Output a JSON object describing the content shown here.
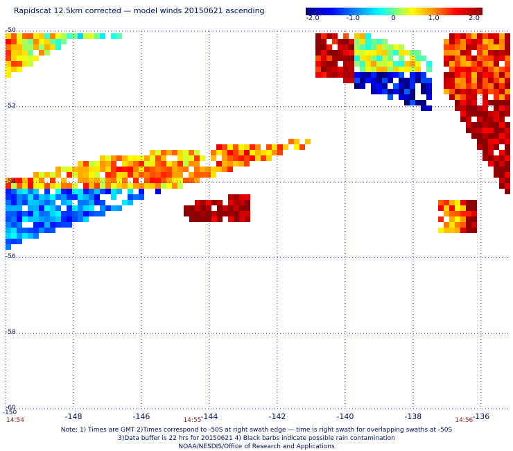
{
  "title": "Rapidscat 12.5km corrected — model winds 20150621 ascending",
  "colorbar": {
    "ticks": [
      "-2.0",
      "-1.0",
      "0",
      "1.0",
      "2.0"
    ],
    "tick_values": [
      -2,
      -1,
      0,
      1,
      2
    ],
    "min": -2,
    "max": 2,
    "colors": [
      "#000078",
      "#0000ff",
      "#0096ff",
      "#00ffff",
      "#ffff00",
      "#ff9600",
      "#ff0000",
      "#8b0000"
    ]
  },
  "latitude_labels": [
    "-50",
    "-52",
    "-54",
    "-56",
    "-58",
    "-60"
  ],
  "latitude_values": [
    -50,
    -52,
    -54,
    -56,
    -58,
    -60
  ],
  "longitude_labels": [
    "-148",
    "-146",
    "-144",
    "-142",
    "-140",
    "-138",
    "-136"
  ],
  "longitude_values": [
    -148,
    -146,
    -144,
    -142,
    -140,
    -138,
    -136
  ],
  "extent": {
    "lon_min": -150,
    "lon_max": -135.2,
    "lat_max": -50,
    "lat_min": -60
  },
  "corner_labels": {
    "left": "-150"
  },
  "times": [
    {
      "lon": -150,
      "label": "14:54"
    },
    {
      "lon": -144.5,
      "label": "14:55"
    },
    {
      "lon": -136.5,
      "label": "14:56"
    }
  ],
  "notes": [
    "Note: 1) Times are GMT 2)Times correspond to -50S at right swath edge — time is right swath for overlapping swaths at -50S",
    "3)Data buffer is 22 hrs for 20150621 4) Black barbs indicate possible rain contamination",
    "NOAA/NESDIS/Office of Research and Applications"
  ],
  "chart_data": {
    "type": "heatmap",
    "title": "Rapidscat 12.5km corrected — model winds 20150621 ascending",
    "xlabel": "",
    "ylabel": "",
    "xlim": [
      -150,
      -135.2
    ],
    "ylim": [
      -60,
      -50
    ],
    "value_range": [
      -2,
      2
    ],
    "swaths": [
      {
        "region": "NW corner",
        "lon_range": [
          -150,
          -146.6
        ],
        "lat_range": [
          -51.2,
          -50
        ],
        "mean_value": 0.5
      },
      {
        "region": "central band",
        "lon_range": [
          -150,
          -141.2
        ],
        "lat_range": [
          -56.2,
          -53.3
        ],
        "mean_value": -0.4
      },
      {
        "region": "north central",
        "lon_range": [
          -140.4,
          -137.2
        ],
        "lat_range": [
          -52.3,
          -50.1
        ],
        "mean_value": 0.1
      },
      {
        "region": "east",
        "lon_range": [
          -135.9,
          -135.2
        ],
        "lat_range": [
          -54.8,
          -50
        ],
        "mean_value": 1.6
      },
      {
        "region": "SE patch",
        "lon_range": [
          -137,
          -136.2
        ],
        "lat_range": [
          -55.4,
          -54.9
        ],
        "mean_value": 1.3
      }
    ]
  }
}
